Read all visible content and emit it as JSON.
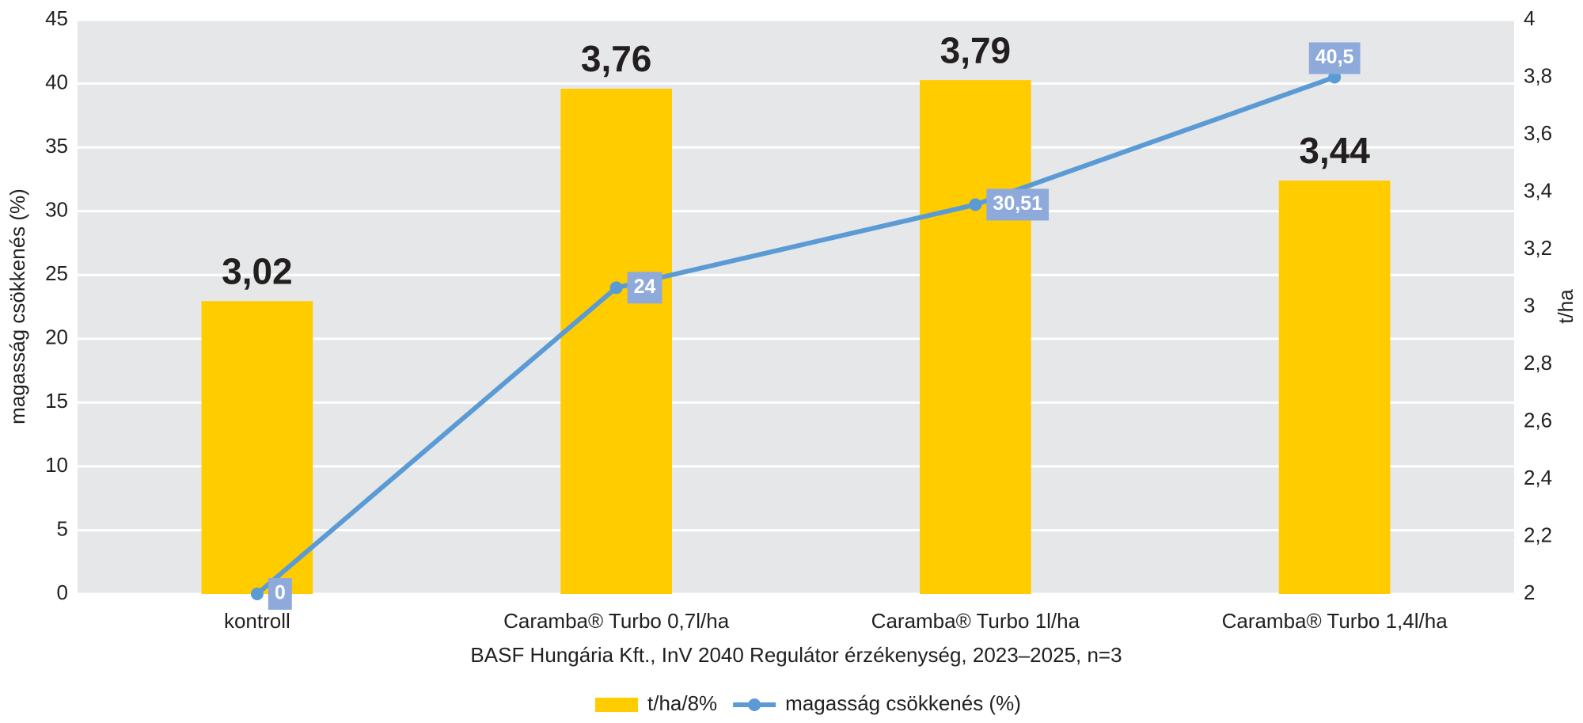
{
  "chart_data": {
    "type": "bar",
    "categories": [
      "kontroll",
      "Caramba® Turbo 0,7l/ha",
      "Caramba® Turbo 1l/ha",
      "Caramba® Turbo 1,4l/ha"
    ],
    "series": [
      {
        "name": "t/ha/8%",
        "type": "bar",
        "axis": "y2",
        "color": "#ffcc00",
        "values": [
          3.02,
          3.76,
          3.79,
          3.44
        ],
        "value_labels": [
          "3,02",
          "3,76",
          "3,79",
          "3,44"
        ]
      },
      {
        "name": "magasság csökkenés (%)",
        "type": "line",
        "color": "#5b9bd5",
        "values": [
          0,
          24,
          30.51,
          40.5
        ],
        "value_labels": [
          "0",
          "24",
          "30,51",
          "40,5"
        ]
      }
    ],
    "ylabel": "magasság csökkenés (%)",
    "y2label": "t/ha",
    "xlabel": "BASF Hungária Kft., InV 2040 Regulátor érzékenység, 2023–2025, n=3",
    "ylim": [
      0,
      45
    ],
    "yticks": [
      0,
      5,
      10,
      15,
      20,
      25,
      30,
      35,
      40,
      45
    ],
    "y2lim": [
      2,
      4
    ],
    "y2ticks": [
      2,
      {
        "value": 2.2,
        "label": "2,2"
      },
      {
        "value": 2.4,
        "label": "2,4"
      },
      {
        "value": 2.6,
        "label": "2,6"
      },
      {
        "value": 2.8,
        "label": "2,8"
      },
      3,
      {
        "value": 3.2,
        "label": "3,2"
      },
      {
        "value": 3.4,
        "label": "3,4"
      },
      {
        "value": 3.6,
        "label": "3,6"
      },
      {
        "value": 3.8,
        "label": "3,8"
      },
      4
    ],
    "grid": true,
    "background": "#e6e7e8",
    "label_box_color": "#8eaadb"
  }
}
